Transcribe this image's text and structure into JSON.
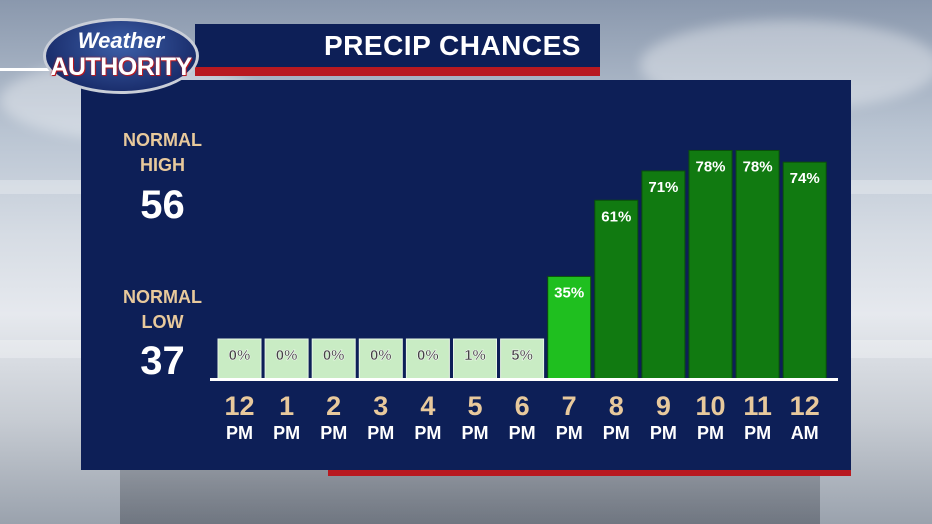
{
  "header": {
    "title": "PRECIP CHANCES"
  },
  "logo": {
    "line1": "Weather",
    "line2": "AUTHORITY"
  },
  "normals": {
    "high_label_1": "NORMAL",
    "high_label_2": "HIGH",
    "high_value": "56",
    "low_label_1": "NORMAL",
    "low_label_2": "LOW",
    "low_value": "37"
  },
  "colors": {
    "panel": "#0d1f57",
    "accent_red": "#b81920",
    "bar_light": "#c9ecc4",
    "bar_mid": "#1fbf1f",
    "bar_dark": "#117a11",
    "tick_number": "#e8c99c"
  },
  "chart_data": {
    "type": "bar",
    "title": "PRECIP CHANCES",
    "categories": [
      {
        "hour": "12",
        "period": "PM"
      },
      {
        "hour": "1",
        "period": "PM"
      },
      {
        "hour": "2",
        "period": "PM"
      },
      {
        "hour": "3",
        "period": "PM"
      },
      {
        "hour": "4",
        "period": "PM"
      },
      {
        "hour": "5",
        "period": "PM"
      },
      {
        "hour": "6",
        "period": "PM"
      },
      {
        "hour": "7",
        "period": "PM"
      },
      {
        "hour": "8",
        "period": "PM"
      },
      {
        "hour": "9",
        "period": "PM"
      },
      {
        "hour": "10",
        "period": "PM"
      },
      {
        "hour": "11",
        "period": "PM"
      },
      {
        "hour": "12",
        "period": "AM"
      }
    ],
    "values": [
      0,
      0,
      0,
      0,
      0,
      1,
      5,
      35,
      61,
      71,
      78,
      78,
      74
    ],
    "data_labels": [
      "0%",
      "0%",
      "0%",
      "0%",
      "0%",
      "1%",
      "5%",
      "35%",
      "61%",
      "71%",
      "78%",
      "78%",
      "74%"
    ],
    "ylim": [
      0,
      100
    ],
    "grid": false,
    "legend": "none"
  }
}
